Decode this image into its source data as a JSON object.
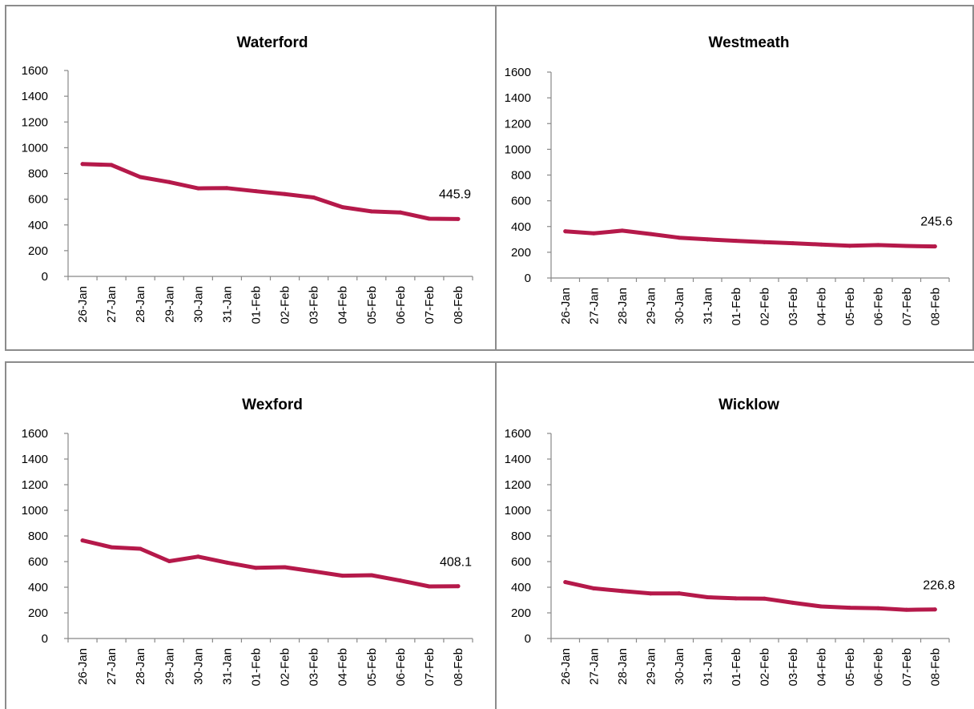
{
  "colors": {
    "series": "#B5194A",
    "axis": "#888888",
    "border": "#8c8c8c"
  },
  "chart_data": [
    {
      "type": "line",
      "title": "Waterford",
      "categories": [
        "26-Jan",
        "27-Jan",
        "28-Jan",
        "29-Jan",
        "30-Jan",
        "31-Jan",
        "01-Feb",
        "02-Feb",
        "03-Feb",
        "04-Feb",
        "05-Feb",
        "06-Feb",
        "07-Feb",
        "08-Feb"
      ],
      "yticks": [
        "0",
        "200",
        "400",
        "600",
        "800",
        "1000",
        "1200",
        "1400",
        "1600"
      ],
      "ylim": [
        0,
        1600
      ],
      "grid": false,
      "series": [
        {
          "values": [
            873,
            866,
            772,
            733,
            684,
            686,
            662,
            640,
            613,
            538,
            505,
            497,
            448,
            445.9
          ]
        }
      ],
      "last_label": "445.9"
    },
    {
      "type": "line",
      "title": "Westmeath",
      "categories": [
        "26-Jan",
        "27-Jan",
        "28-Jan",
        "29-Jan",
        "30-Jan",
        "31-Jan",
        "01-Feb",
        "02-Feb",
        "03-Feb",
        "04-Feb",
        "05-Feb",
        "06-Feb",
        "07-Feb",
        "08-Feb"
      ],
      "yticks": [
        "0",
        "200",
        "400",
        "600",
        "800",
        "1000",
        "1200",
        "1400",
        "1600"
      ],
      "ylim": [
        0,
        1600
      ],
      "grid": false,
      "series": [
        {
          "values": [
            363,
            347,
            368,
            342,
            313,
            300,
            289,
            278,
            270,
            260,
            250,
            256,
            249,
            245.6
          ]
        }
      ],
      "last_label": "245.6"
    },
    {
      "type": "line",
      "title": "Wexford",
      "categories": [
        "26-Jan",
        "27-Jan",
        "28-Jan",
        "29-Jan",
        "30-Jan",
        "31-Jan",
        "01-Feb",
        "02-Feb",
        "03-Feb",
        "04-Feb",
        "05-Feb",
        "06-Feb",
        "07-Feb",
        "08-Feb"
      ],
      "yticks": [
        "0",
        "200",
        "400",
        "600",
        "800",
        "1000",
        "1200",
        "1400",
        "1600"
      ],
      "ylim": [
        0,
        1600
      ],
      "grid": false,
      "series": [
        {
          "values": [
            765,
            712,
            700,
            603,
            639,
            592,
            551,
            556,
            524,
            490,
            494,
            452,
            406,
            408.1
          ]
        }
      ],
      "last_label": "408.1"
    },
    {
      "type": "line",
      "title": "Wicklow",
      "categories": [
        "26-Jan",
        "27-Jan",
        "28-Jan",
        "29-Jan",
        "30-Jan",
        "31-Jan",
        "01-Feb",
        "02-Feb",
        "03-Feb",
        "04-Feb",
        "05-Feb",
        "06-Feb",
        "07-Feb",
        "08-Feb"
      ],
      "yticks": [
        "0",
        "200",
        "400",
        "600",
        "800",
        "1000",
        "1200",
        "1400",
        "1600"
      ],
      "ylim": [
        0,
        1600
      ],
      "grid": false,
      "series": [
        {
          "values": [
            440,
            391,
            370,
            351,
            352,
            322,
            313,
            311,
            279,
            250,
            240,
            236,
            224,
            226.8
          ]
        }
      ],
      "last_label": "226.8"
    }
  ]
}
